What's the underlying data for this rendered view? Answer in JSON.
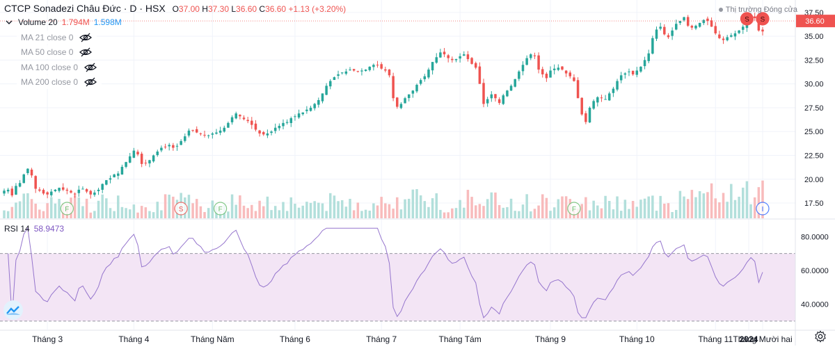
{
  "header": {
    "symbol_name": "CTCP Sonadezi Châu Đức",
    "interval": "D",
    "exchange": "HSX",
    "open_label": "O",
    "open": "37.00",
    "high_label": "H",
    "high": "37.30",
    "low_label": "L",
    "low": "36.60",
    "close_label": "C",
    "close": "36.60",
    "change": "+1.13 (+3.20%)"
  },
  "market_status": "Thị trường Đóng cửa",
  "volume_legend": {
    "label": "Volume 20",
    "value1": "1.794M",
    "value2": "1.598M"
  },
  "ma_indicators": [
    {
      "label": "MA 21 close 0"
    },
    {
      "label": "MA 50 close 0"
    },
    {
      "label": "MA 100 close 0"
    },
    {
      "label": "MA 200 close 0"
    }
  ],
  "rsi_legend": {
    "label": "RSI 14",
    "value": "58.9473"
  },
  "colors": {
    "up": "#26a69a",
    "down": "#ef5350",
    "vol_up": "#b2dfdb",
    "vol_down": "#f8bbbc",
    "rsi_line": "#9575cd",
    "rsi_band": "#f3e5f5",
    "event_f": "#66bb6a",
    "event_s": "#ef5350",
    "event_i": "#2962ff"
  },
  "price_label": "36.60",
  "chart_data": [
    {
      "type": "candlestick",
      "title": "CTCP Sonadezi Châu Đức",
      "x_tick_labels": [
        "Tháng 3",
        "Tháng 4",
        "Tháng Năm",
        "Tháng 6",
        "Tháng 7",
        "Tháng Tám",
        "Tháng 9",
        "Tháng 10",
        "Tháng 11",
        "Tháng Mười hai",
        "2024"
      ],
      "ylim": [
        15.9,
        38.8
      ],
      "y_ticks": [
        "17.50",
        "20.00",
        "22.50",
        "25.00",
        "27.50",
        "30.00",
        "32.50",
        "35.00",
        "37.50"
      ],
      "close_series": [
        18.8,
        18.9,
        18.3,
        19.3,
        19.6,
        20.5,
        21.1,
        20.4,
        19.0,
        18.8,
        18.5,
        18.4,
        18.7,
        18.9,
        19.1,
        18.9,
        18.8,
        18.6,
        18.4,
        18.9,
        19.0,
        18.7,
        18.4,
        18.6,
        18.9,
        19.5,
        19.9,
        20.1,
        20.5,
        20.6,
        21.3,
        21.8,
        22.4,
        23.0,
        22.6,
        21.6,
        21.7,
        22.0,
        22.5,
        22.9,
        23.3,
        23.4,
        23.6,
        23.3,
        23.5,
        24.0,
        24.5,
        25.1,
        25.1,
        24.9,
        24.8,
        24.6,
        24.6,
        24.8,
        24.9,
        25.1,
        25.4,
        25.9,
        26.5,
        26.9,
        26.6,
        26.3,
        26.1,
        25.7,
        25.2,
        24.8,
        24.7,
        24.8,
        25.0,
        25.4,
        25.6,
        25.9,
        26.0,
        26.4,
        26.6,
        26.9,
        27.0,
        27.3,
        27.5,
        27.9,
        28.3,
        29.0,
        29.8,
        30.3,
        30.7,
        31.0,
        31.2,
        31.3,
        31.5,
        31.4,
        31.3,
        31.4,
        31.5,
        31.8,
        32.0,
        32.0,
        31.6,
        31.4,
        30.9,
        28.5,
        27.6,
        27.9,
        28.5,
        28.9,
        29.3,
        29.9,
        30.4,
        30.8,
        31.5,
        32.3,
        32.8,
        33.3,
        33.1,
        32.7,
        32.5,
        32.6,
        32.9,
        33.1,
        32.6,
        32.1,
        31.7,
        30.0,
        27.9,
        28.4,
        28.9,
        28.5,
        28.0,
        28.8,
        29.3,
        29.8,
        30.5,
        31.3,
        32.0,
        32.7,
        33.1,
        32.9,
        31.5,
        31.0,
        30.6,
        31.4,
        31.6,
        31.7,
        31.5,
        31.1,
        30.8,
        30.3,
        28.5,
        26.8,
        26.0,
        27.5,
        28.2,
        28.6,
        28.5,
        28.4,
        29.0,
        29.5,
        30.3,
        30.9,
        31.1,
        31.3,
        31.0,
        31.4,
        31.8,
        32.5,
        33.2,
        34.8,
        35.7,
        36.0,
        35.2,
        34.9,
        35.6,
        36.3,
        36.6,
        37.0,
        36.1,
        35.9,
        36.1,
        36.4,
        36.7,
        36.6,
        36.0,
        35.3,
        34.8,
        34.6,
        34.9,
        35.1,
        35.3,
        35.6,
        36.0,
        36.6,
        37.1,
        36.9,
        35.6,
        35.5
      ],
      "volume_ylim": [
        0,
        6
      ],
      "rsi_ylim": [
        25,
        90
      ],
      "rsi_ticks": [
        "40.0000",
        "60.0000",
        "80.0000"
      ],
      "rsi_band": [
        30,
        70
      ],
      "rsi_last": 58.9473,
      "events": [
        {
          "label": "F",
          "x": 16
        },
        {
          "label": "S",
          "x": 45
        },
        {
          "label": "F",
          "x": 55
        },
        {
          "label": "F",
          "x": 145
        },
        {
          "label": "S",
          "x": 189
        },
        {
          "label": "S",
          "x": 211
        },
        {
          "label": "I",
          "x": 212
        }
      ]
    }
  ]
}
